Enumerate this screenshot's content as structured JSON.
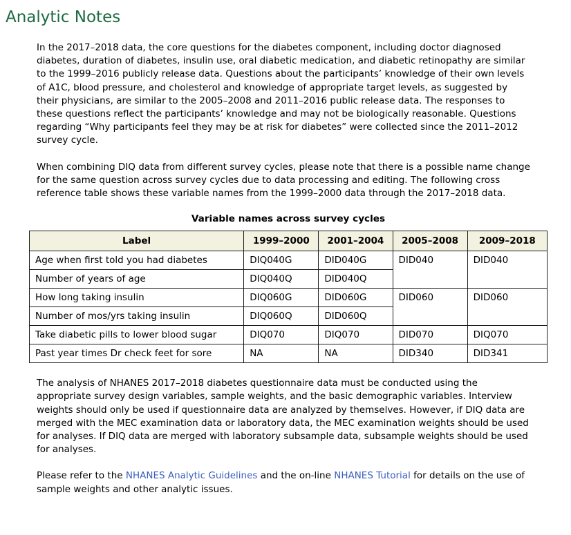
{
  "page": {
    "title": "Analytic Notes"
  },
  "colors": {
    "heading_green": "#1d6a42",
    "link_blue": "#3c5fbe",
    "table_header_bg": "#f3f2e0",
    "table_border": "#1a1a1a"
  },
  "paragraphs": {
    "core_questions": "In the 2017–2018 data, the core questions for the diabetes component, including doctor diagnosed diabetes, duration of diabetes, insulin use, oral diabetic medication, and diabetic retinopathy are similar to the 1999–2016 publicly release data. Questions about the participants’ knowledge of their own levels of A1C, blood pressure, and cholesterol and knowledge of appropriate target levels, as suggested by their physicians, are similar to the 2005–2008 and 2011–2016 public release data. The responses to these questions reflect the participants’ knowledge and may not be biologically reasonable. Questions regarding “Why participants feel they may be at risk for diabetes” were collected since the 2011–2012 survey cycle.",
    "name_change": "When combining DIQ data from different survey cycles, please note that there is a possible name change for the same question across survey cycles due to data processing and editing. The following cross reference table shows these variable names from the 1999–2000 data through the 2017–2018 data.",
    "analysis_weights": "The analysis of NHANES 2017–2018 diabetes questionnaire data must be conducted using the appropriate survey design variables, sample weights, and the basic demographic variables. Interview weights should only be used if questionnaire data are analyzed by themselves. However, if DIQ data are merged with the MEC examination data or laboratory data, the MEC examination weights should be used for analyses. If DIQ data are merged with laboratory subsample data, subsample weights should be used for analyses."
  },
  "closing": {
    "pre": "Please refer to the ",
    "link1": "NHANES Analytic Guidelines",
    "mid": " and the on-line ",
    "link2": "NHANES Tutorial",
    "post": " for details on the use of sample weights and other analytic issues."
  },
  "table": {
    "title": "Variable names across survey cycles",
    "headers": [
      "Label",
      "1999–2000",
      "2001–2004",
      "2005–2008",
      "2009–2018"
    ],
    "rows": [
      {
        "label": "Age when first told you had diabetes",
        "c1999": "DIQ040G",
        "c2001": "DID040G",
        "c2005": "DID040",
        "c2009": "DID040"
      },
      {
        "label": "Number of years of age",
        "c1999": "DIQ040Q",
        "c2001": "DID040Q"
      },
      {
        "label": "How long taking insulin",
        "c1999": "DIQ060G",
        "c2001": "DID060G",
        "c2005": "DID060",
        "c2009": "DID060"
      },
      {
        "label": "Number of mos/yrs taking insulin",
        "c1999": "DIQ060Q",
        "c2001": "DID060Q"
      },
      {
        "label": "Take diabetic pills to lower blood sugar",
        "c1999": "DIQ070",
        "c2001": "DIQ070",
        "c2005": "DID070",
        "c2009": "DIQ070"
      },
      {
        "label": "Past year times Dr check feet for sore",
        "c1999": "NA",
        "c2001": "NA",
        "c2005": "DID340",
        "c2009": "DID341"
      }
    ]
  }
}
